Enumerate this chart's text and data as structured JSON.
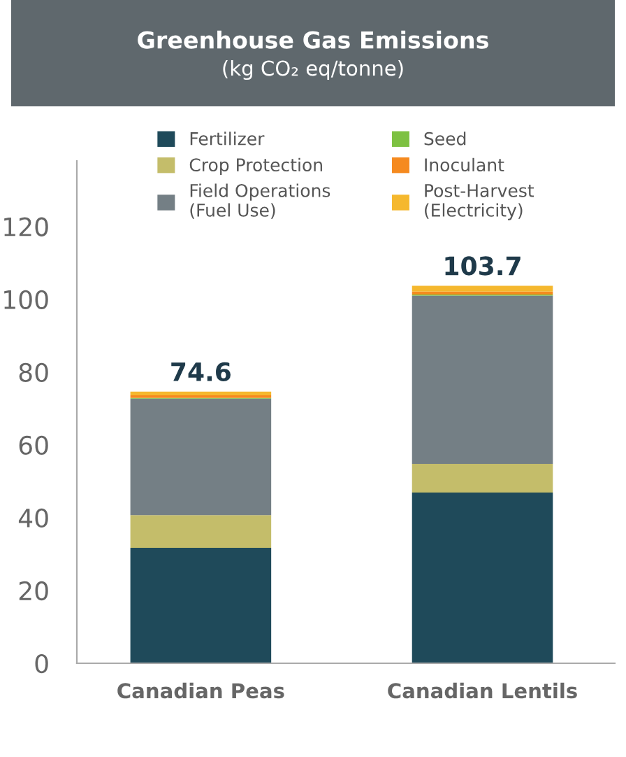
{
  "chart_data": {
    "type": "bar",
    "title": "Greenhouse Gas Emissions",
    "subtitle": "(kg CO₂ eq/tonne)",
    "categories": [
      "Canadian Peas",
      "Canadian Lentils"
    ],
    "stacked": true,
    "series": [
      {
        "name": "Fertilizer",
        "color": "#1f4a5a",
        "values": [
          31.7,
          46.9
        ]
      },
      {
        "name": "Crop Protection",
        "color": "#c4bd6a",
        "values": [
          9.0,
          7.9
        ]
      },
      {
        "name": "Field Operations\n(Fuel Use)",
        "color": "#747f85",
        "values": [
          32.0,
          46.2
        ]
      },
      {
        "name": "Seed",
        "color": "#7dc142",
        "values": [
          0.2,
          0.3
        ]
      },
      {
        "name": "Inoculant",
        "color": "#f58a1f",
        "values": [
          0.7,
          0.8
        ]
      },
      {
        "name": "Post-Harvest\n(Electricity)",
        "color": "#f5b82e",
        "values": [
          1.0,
          1.6
        ]
      }
    ],
    "totals": [
      "74.6",
      "103.7"
    ],
    "ylim": [
      0,
      138
    ],
    "yticks": [
      0,
      20,
      40,
      60,
      80,
      100,
      120
    ],
    "grid": false,
    "legend": "top"
  }
}
